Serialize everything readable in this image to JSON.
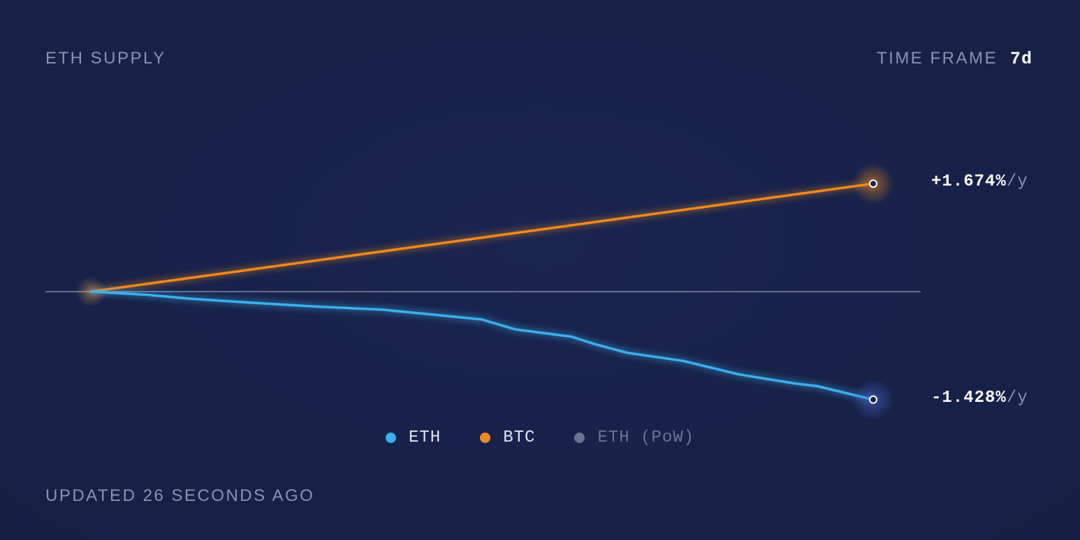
{
  "header": {
    "title": "ETH SUPPLY",
    "timeframe_label": "TIME FRAME",
    "timeframe_value": "7d"
  },
  "footer": {
    "updated_text": "UPDATED 26 SECONDS AGO"
  },
  "colors": {
    "background": "#171f3e",
    "eth": "#3ab0f0",
    "btc": "#f08a1c",
    "eth_pow": "#6b7391",
    "baseline": "#7f89a8"
  },
  "chart_data": {
    "type": "line",
    "title": "ETH SUPPLY",
    "xlabel": "",
    "ylabel": "",
    "x_unit": "day",
    "x_range": [
      0,
      7
    ],
    "ylim": [
      -2.0,
      2.0
    ],
    "baseline_y": 0,
    "grid": false,
    "legend_position": "bottom-center",
    "series": [
      {
        "name": "ETH",
        "color": "#3ab0f0",
        "end_label_value": "-1.428%",
        "end_label_unit": "/y",
        "points": [
          [
            0.0,
            0.0
          ],
          [
            0.5,
            -0.035
          ],
          [
            0.9,
            -0.08
          ],
          [
            1.4,
            -0.12
          ],
          [
            2.0,
            -0.165
          ],
          [
            2.6,
            -0.2
          ],
          [
            3.1,
            -0.26
          ],
          [
            3.5,
            -0.31
          ],
          [
            3.8,
            -0.42
          ],
          [
            4.3,
            -0.5
          ],
          [
            4.5,
            -0.58
          ],
          [
            4.8,
            -0.68
          ],
          [
            5.3,
            -0.77
          ],
          [
            5.8,
            -0.92
          ],
          [
            6.3,
            -1.02
          ],
          [
            6.5,
            -1.05
          ],
          [
            7.0,
            -1.2
          ]
        ]
      },
      {
        "name": "BTC",
        "color": "#f08a1c",
        "end_label_value": "+1.674%",
        "end_label_unit": "/y",
        "points": [
          [
            0.0,
            0.0
          ],
          [
            7.0,
            1.2
          ]
        ]
      },
      {
        "name": "ETH (PoW)",
        "color": "#6b7391",
        "points": []
      }
    ]
  }
}
